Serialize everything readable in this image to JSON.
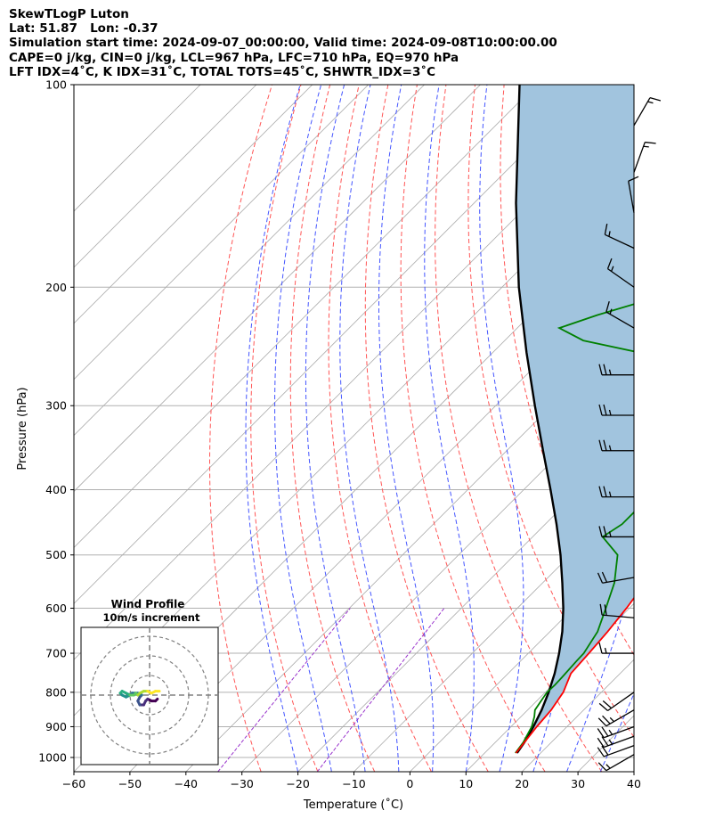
{
  "header": {
    "line1": "SkewTLogP Luton",
    "line2": "Lat: 51.87   Lon: -0.37",
    "line3": "Simulation start time: 2024-09-07_00:00:00, Valid time: 2024-09-08T10:00:00.00",
    "line4": "CAPE=0 j/kg, CIN=0 j/kg, LCL=967 hPa, LFC=710 hPa, EQ=970 hPa",
    "line5": "LFT IDX=4˚C, K IDX=31˚C, TOTAL TOTS=45˚C, SHWTR_IDX=3˚C"
  },
  "chart_data": {
    "type": "line",
    "subtype": "skew-T log-P",
    "xlabel": "Temperature (˚C)",
    "ylabel": "Pressure (hPa)",
    "xlim": [
      -60,
      40
    ],
    "ylim": [
      1050,
      100
    ],
    "y_scale": "log",
    "x_ticks": [
      "−60",
      "−50",
      "−40",
      "−30",
      "−20",
      "−10",
      "0",
      "10",
      "20",
      "30",
      "40"
    ],
    "y_ticks": [
      "100",
      "200",
      "300",
      "400",
      "500",
      "600",
      "700",
      "800",
      "900",
      "1000"
    ],
    "grid": true,
    "colors": {
      "temperature": "#ff0000",
      "dewpoint": "#008000",
      "parcel": "#000000",
      "cape_fill": "#a1c4de",
      "dry_adiabat": "#ff5555",
      "moist_adiabat": "#4455ff",
      "mixing_ratio": "#9933cc",
      "isotherm": "#aaaaaa"
    },
    "series": [
      {
        "key": "temperature",
        "pressure": [
          985,
          950,
          900,
          850,
          800,
          750,
          700,
          650,
          600,
          550,
          500,
          450,
          400,
          350,
          320,
          300,
          285,
          260,
          240,
          220,
          200,
          180,
          160,
          140,
          120,
          100
        ],
        "values": [
          15.6,
          15.2,
          14.6,
          14.2,
          13.2,
          11.2,
          10.8,
          10.3,
          9.5,
          8.3,
          6.2,
          2.4,
          -2.2,
          -6.5,
          -10.0,
          -14.2,
          -16.6,
          -21.8,
          -25.2,
          -27.6,
          -30.6,
          -34.2,
          -38.3,
          -43.0,
          -50.0,
          -61.5
        ]
      },
      {
        "key": "dewpoint",
        "pressure": [
          985,
          950,
          900,
          870,
          850,
          820,
          800,
          780,
          760,
          720,
          700,
          650,
          600,
          550,
          500,
          470,
          450,
          420,
          400,
          380,
          360,
          340,
          330,
          320,
          310,
          300,
          290,
          280,
          270,
          260,
          250,
          240,
          230,
          220,
          210,
          200,
          190,
          180,
          170,
          160,
          140,
          120,
          100
        ],
        "values": [
          15.5,
          15.0,
          13.7,
          12.4,
          11.3,
          10.7,
          10.3,
          10.4,
          10.3,
          10.0,
          9.9,
          8.5,
          5.8,
          2.8,
          -1.6,
          -7.5,
          -6.3,
          -6.3,
          -7.0,
          -8.5,
          -9.8,
          -12.6,
          -14.3,
          -15.3,
          -16.8,
          -17.6,
          -17.7,
          -18.0,
          -18.5,
          -21.7,
          -34.0,
          -46.0,
          -52.5,
          -48.0,
          -42.3,
          -38.5,
          -39.9,
          -42.1,
          -45.5,
          -48.2,
          -53.7,
          -60.0,
          -68.0
        ]
      },
      {
        "key": "parcel",
        "pressure": [
          985,
          950,
          900,
          850,
          800,
          750,
          700,
          650,
          600,
          550,
          500,
          450,
          400,
          350,
          300,
          250,
          200,
          150,
          100
        ],
        "values": [
          15.8,
          15.2,
          14.0,
          12.5,
          10.6,
          8.3,
          5.5,
          2.2,
          -1.8,
          -6.5,
          -11.8,
          -18.0,
          -25.2,
          -33.5,
          -43.0,
          -54.0,
          -67.0,
          -82.5,
          -103.0
        ]
      }
    ],
    "wind_barbs": {
      "units": "kt",
      "levels": [
        {
          "p": 990,
          "speed": 15,
          "dir": 240
        },
        {
          "p": 960,
          "speed": 20,
          "dir": 250
        },
        {
          "p": 930,
          "speed": 25,
          "dir": 250
        },
        {
          "p": 900,
          "speed": 25,
          "dir": 250
        },
        {
          "p": 850,
          "speed": 25,
          "dir": 240
        },
        {
          "p": 800,
          "speed": 20,
          "dir": 235
        },
        {
          "p": 700,
          "speed": 15,
          "dir": 270
        },
        {
          "p": 620,
          "speed": 20,
          "dir": 275
        },
        {
          "p": 540,
          "speed": 20,
          "dir": 260
        },
        {
          "p": 470,
          "speed": 25,
          "dir": 270
        },
        {
          "p": 410,
          "speed": 25,
          "dir": 270
        },
        {
          "p": 350,
          "speed": 25,
          "dir": 270
        },
        {
          "p": 310,
          "speed": 25,
          "dir": 270
        },
        {
          "p": 270,
          "speed": 25,
          "dir": 270
        },
        {
          "p": 230,
          "speed": 15,
          "dir": 300
        },
        {
          "p": 200,
          "speed": 15,
          "dir": 305
        },
        {
          "p": 175,
          "speed": 15,
          "dir": 295
        },
        {
          "p": 155,
          "speed": 10,
          "dir": 350
        },
        {
          "p": 135,
          "speed": 15,
          "dir": 20
        },
        {
          "p": 115,
          "speed": 15,
          "dir": 30
        }
      ]
    },
    "inset": {
      "title": "Wind Profile",
      "subtitle": "10m/s increment",
      "rings": [
        10,
        20,
        30
      ],
      "max": 35,
      "hodograph_u": [
        4.0,
        3.0,
        1.0,
        -1.0,
        -2.0,
        -3.0,
        -5.0,
        -6.0,
        -5.0,
        -4.0,
        -6.0,
        -9.0,
        -10.0,
        -12.0,
        -14.0,
        -15.0,
        -14.0,
        -12.0,
        -10.0,
        -8.0,
        -7.0,
        -6.0,
        -5.0,
        -3.0,
        -1.0,
        1.0,
        3.0,
        5.0
      ],
      "hodograph_v": [
        -2.0,
        -3.0,
        -3.0,
        -2.0,
        -3.0,
        -5.0,
        -5.0,
        -3.0,
        -1.0,
        0.0,
        1.0,
        1.0,
        0.0,
        -1.0,
        0.0,
        1.0,
        2.0,
        1.0,
        0.0,
        0.0,
        1.0,
        0.0,
        1.0,
        2.0,
        2.0,
        1.0,
        2.0,
        2.0
      ]
    }
  }
}
